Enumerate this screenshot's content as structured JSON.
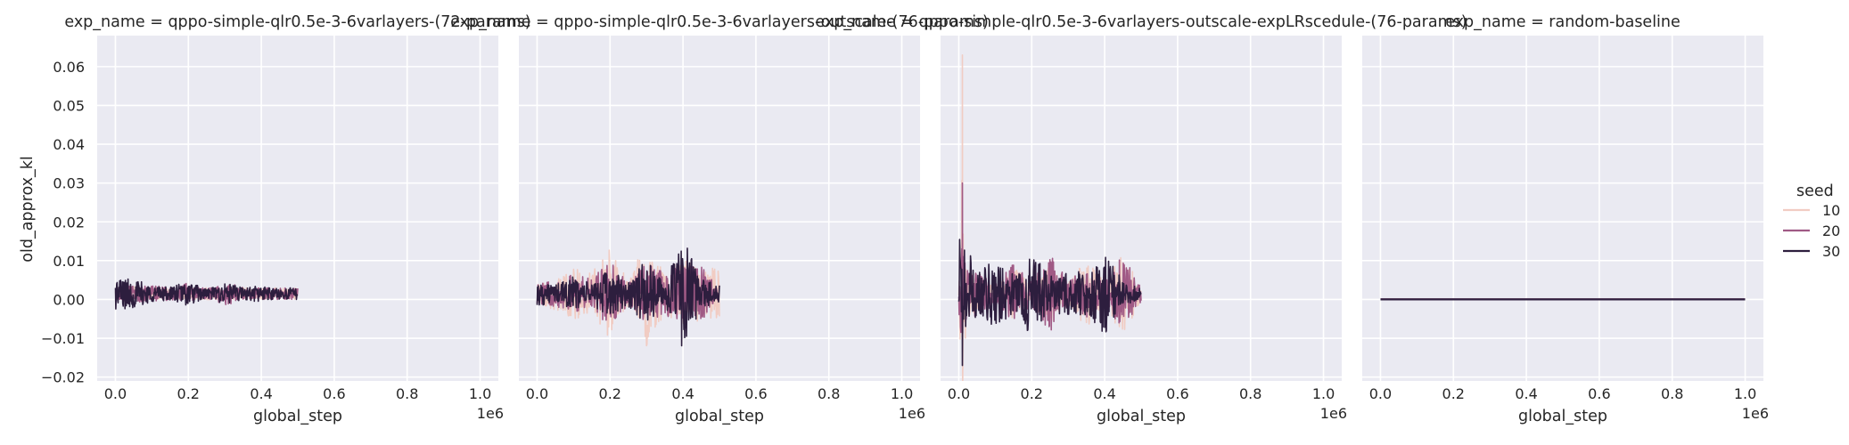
{
  "chart_data": {
    "type": "line",
    "facet_prefix": "exp_name = ",
    "xlabel": "global_step",
    "ylabel": "old_approx_kl",
    "x_offset_label": "1e6",
    "xlim": [
      -0.05,
      1.05
    ],
    "ylim": [
      -0.021,
      0.068
    ],
    "x_ticks": [
      0.0,
      0.2,
      0.4,
      0.6,
      0.8,
      1.0
    ],
    "x_tick_labels": [
      "0.0",
      "0.2",
      "0.4",
      "0.6",
      "0.8",
      "1.0"
    ],
    "y_ticks": [
      -0.02,
      -0.01,
      0.0,
      0.01,
      0.02,
      0.03,
      0.04,
      0.05,
      0.06
    ],
    "y_tick_labels": [
      "−0.02",
      "−0.01",
      "0.00",
      "0.01",
      "0.02",
      "0.03",
      "0.04",
      "0.05",
      "0.06"
    ],
    "grid": true,
    "legend": {
      "title": "seed",
      "position": "right",
      "entries": [
        {
          "label": "10",
          "color": "#f1ccc3"
        },
        {
          "label": "20",
          "color": "#a05a85"
        },
        {
          "label": "30",
          "color": "#2d1e3e"
        }
      ]
    },
    "panels": [
      {
        "title": "qppo-simple-qlr0.5e-3-6varlayers-(72-params)",
        "series": [
          {
            "name": "10",
            "x": [
              0.0,
              0.05,
              0.1,
              0.15,
              0.2,
              0.25,
              0.3,
              0.35,
              0.4,
              0.45,
              0.5
            ],
            "y": [
              0.001,
              0.0035,
              -0.002,
              0.003,
              0.0015,
              -0.003,
              0.002,
              0.001,
              0.0025,
              -0.001,
              0.0005
            ]
          },
          {
            "name": "20",
            "x": [
              0.0,
              0.05,
              0.1,
              0.15,
              0.2,
              0.25,
              0.3,
              0.35,
              0.4,
              0.45,
              0.5
            ],
            "y": [
              0.003,
              -0.004,
              0.004,
              -0.003,
              0.005,
              0.001,
              -0.006,
              0.003,
              -0.002,
              0.002,
              -0.002
            ]
          },
          {
            "name": "30",
            "x": [
              0.0,
              0.05,
              0.1,
              0.15,
              0.2,
              0.25,
              0.3,
              0.35,
              0.4,
              0.45,
              0.5
            ],
            "y": [
              0.008,
              -0.007,
              0.004,
              -0.003,
              0.006,
              -0.002,
              0.005,
              -0.003,
              0.004,
              -0.002,
              0.001
            ]
          }
        ]
      },
      {
        "title": "qppo-simple-qlr0.5e-3-6varlayers-outscale-(76-params)",
        "series": [
          {
            "name": "10",
            "x": [
              0.0,
              0.05,
              0.1,
              0.15,
              0.2,
              0.25,
              0.3,
              0.35,
              0.4,
              0.45,
              0.5
            ],
            "y": [
              0.004,
              -0.008,
              0.012,
              -0.01,
              0.021,
              -0.006,
              0.025,
              -0.009,
              0.018,
              -0.012,
              -0.012
            ]
          },
          {
            "name": "20",
            "x": [
              0.0,
              0.05,
              0.1,
              0.15,
              0.2,
              0.25,
              0.3,
              0.35,
              0.4,
              0.45,
              0.5
            ],
            "y": [
              0.005,
              -0.006,
              0.009,
              -0.007,
              0.016,
              -0.005,
              0.014,
              -0.011,
              0.013,
              -0.013,
              0.002
            ]
          },
          {
            "name": "30",
            "x": [
              0.0,
              0.05,
              0.1,
              0.15,
              0.2,
              0.25,
              0.3,
              0.35,
              0.4,
              0.45,
              0.5
            ],
            "y": [
              0.006,
              -0.004,
              0.008,
              -0.005,
              0.012,
              -0.006,
              0.016,
              -0.005,
              0.026,
              -0.007,
              0.004
            ]
          }
        ]
      },
      {
        "title": "qppo-simple-qlr0.5e-3-6varlayers-outscale-expLRscedule-(76-params)",
        "series": [
          {
            "name": "10",
            "x": [
              0.0,
              0.01,
              0.02,
              0.05,
              0.1,
              0.15,
              0.2,
              0.25,
              0.3,
              0.35,
              0.4,
              0.45,
              0.5
            ],
            "y": [
              0.005,
              0.063,
              -0.012,
              0.008,
              -0.004,
              0.012,
              -0.006,
              0.014,
              -0.005,
              0.016,
              -0.006,
              0.02,
              -0.003
            ]
          },
          {
            "name": "20",
            "x": [
              0.0,
              0.01,
              0.02,
              0.05,
              0.1,
              0.15,
              0.2,
              0.25,
              0.3,
              0.35,
              0.4,
              0.45,
              0.5
            ],
            "y": [
              0.01,
              0.03,
              -0.013,
              0.01,
              -0.005,
              0.014,
              -0.006,
              0.019,
              -0.006,
              0.012,
              -0.005,
              0.019,
              -0.004
            ]
          },
          {
            "name": "30",
            "x": [
              0.0,
              0.01,
              0.02,
              0.05,
              0.1,
              0.15,
              0.2,
              0.25,
              0.3,
              0.35,
              0.4,
              0.45,
              0.5
            ],
            "y": [
              0.032,
              -0.017,
              0.024,
              -0.01,
              0.016,
              -0.009,
              0.021,
              -0.008,
              0.011,
              -0.01,
              0.019,
              -0.006,
              0.002
            ]
          }
        ]
      },
      {
        "title": "random-baseline",
        "series": [
          {
            "name": "10",
            "x": [
              0.0,
              1.0
            ],
            "y": [
              0.0,
              0.0
            ]
          },
          {
            "name": "20",
            "x": [
              0.0,
              1.0
            ],
            "y": [
              0.0,
              0.0
            ]
          },
          {
            "name": "30",
            "x": [
              0.0,
              1.0
            ],
            "y": [
              0.0,
              0.0
            ]
          }
        ]
      }
    ]
  }
}
